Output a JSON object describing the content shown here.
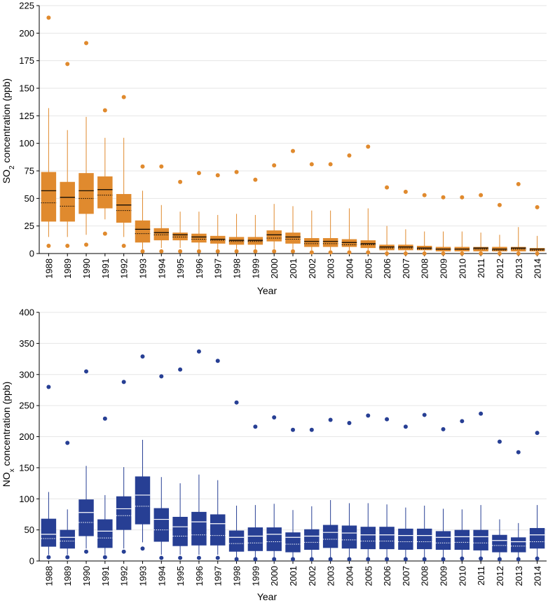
{
  "chart_data": [
    {
      "type": "box",
      "ylabel_parts": [
        "SO",
        "2",
        " concentration (ppb)"
      ],
      "xlabel": "Year",
      "ylim": [
        0,
        225
      ],
      "yticks": [
        0,
        25,
        50,
        75,
        100,
        125,
        150,
        175,
        200,
        225
      ],
      "color": "#e08a2e",
      "median_color": "#000000",
      "categories": [
        "1988",
        "1989",
        "1990",
        "1991",
        "1992",
        "1993",
        "1994",
        "1995",
        "1996",
        "1997",
        "1998",
        "1999",
        "2000",
        "2001",
        "2002",
        "2003",
        "2004",
        "2005",
        "2006",
        "2007",
        "2008",
        "2009",
        "2010",
        "2011",
        "2012",
        "2013",
        "2014"
      ],
      "boxes": [
        {
          "low_out": 7,
          "whisker_low": 15,
          "q1": 29,
          "median": 57,
          "mean": 46,
          "q3": 74,
          "whisker_high": 132,
          "high_out": 214
        },
        {
          "low_out": 7,
          "whisker_low": 15,
          "q1": 29,
          "median": 51,
          "mean": 43,
          "q3": 65,
          "whisker_high": 112,
          "high_out": 172
        },
        {
          "low_out": 8,
          "whisker_low": 17,
          "q1": 36,
          "median": 57,
          "mean": 50,
          "q3": 73,
          "whisker_high": 124,
          "high_out": 191
        },
        {
          "low_out": 18,
          "whisker_low": 31,
          "q1": 41,
          "median": 58,
          "mean": 53,
          "q3": 70,
          "whisker_high": 105,
          "high_out": 130
        },
        {
          "low_out": 7,
          "whisker_low": 15,
          "q1": 28,
          "median": 44,
          "mean": 39,
          "q3": 54,
          "whisker_high": 105,
          "high_out": 142
        },
        {
          "low_out": 2,
          "whisker_low": 4,
          "q1": 10,
          "median": 22,
          "mean": 18,
          "q3": 30,
          "whisker_high": 57,
          "high_out": 79
        },
        {
          "low_out": 2,
          "whisker_low": 5,
          "q1": 12,
          "median": 19,
          "mean": 17,
          "q3": 23,
          "whisker_high": 44,
          "high_out": 79
        },
        {
          "low_out": 2,
          "whisker_low": 5,
          "q1": 12,
          "median": 17,
          "mean": 15,
          "q3": 19,
          "whisker_high": 38,
          "high_out": 65
        },
        {
          "low_out": 2,
          "whisker_low": 4,
          "q1": 10,
          "median": 15,
          "mean": 13,
          "q3": 18,
          "whisker_high": 38,
          "high_out": 73
        },
        {
          "low_out": 2,
          "whisker_low": 4,
          "q1": 9,
          "median": 13,
          "mean": 12,
          "q3": 16,
          "whisker_high": 35,
          "high_out": 71
        },
        {
          "low_out": 2,
          "whisker_low": 4,
          "q1": 8,
          "median": 12,
          "mean": 11,
          "q3": 15,
          "whisker_high": 36,
          "high_out": 74
        },
        {
          "low_out": 2,
          "whisker_low": 4,
          "q1": 8,
          "median": 12,
          "mean": 11,
          "q3": 15,
          "whisker_high": 35,
          "high_out": 67
        },
        {
          "low_out": 2,
          "whisker_low": 4,
          "q1": 11,
          "median": 17,
          "mean": 14,
          "q3": 21,
          "whisker_high": 45,
          "high_out": 80
        },
        {
          "low_out": 2,
          "whisker_low": 4,
          "q1": 9,
          "median": 15,
          "mean": 13,
          "q3": 19,
          "whisker_high": 43,
          "high_out": 93
        },
        {
          "low_out": 1,
          "whisker_low": 3,
          "q1": 6,
          "median": 11,
          "mean": 9,
          "q3": 14,
          "whisker_high": 39,
          "high_out": 81
        },
        {
          "low_out": 1,
          "whisker_low": 3,
          "q1": 6,
          "median": 11,
          "mean": 9,
          "q3": 14,
          "whisker_high": 39,
          "high_out": 81
        },
        {
          "low_out": 1,
          "whisker_low": 3,
          "q1": 6,
          "median": 10,
          "mean": 8,
          "q3": 13,
          "whisker_high": 41,
          "high_out": 89
        },
        {
          "low_out": 1,
          "whisker_low": 2,
          "q1": 5,
          "median": 9,
          "mean": 8,
          "q3": 12,
          "whisker_high": 41,
          "high_out": 97
        },
        {
          "low_out": 0,
          "whisker_low": 1,
          "q1": 3,
          "median": 6,
          "mean": 5,
          "q3": 8,
          "whisker_high": 25,
          "high_out": 60
        },
        {
          "low_out": 0,
          "whisker_low": 1,
          "q1": 3,
          "median": 6,
          "mean": 5,
          "q3": 8,
          "whisker_high": 22,
          "high_out": 56
        },
        {
          "low_out": 0,
          "whisker_low": 1,
          "q1": 3,
          "median": 5,
          "mean": 4,
          "q3": 7,
          "whisker_high": 20,
          "high_out": 53
        },
        {
          "low_out": 0,
          "whisker_low": 1,
          "q1": 2,
          "median": 4,
          "mean": 4,
          "q3": 6,
          "whisker_high": 20,
          "high_out": 51
        },
        {
          "low_out": 0,
          "whisker_low": 1,
          "q1": 2,
          "median": 4,
          "mean": 4,
          "q3": 6,
          "whisker_high": 20,
          "high_out": 51
        },
        {
          "low_out": 0,
          "whisker_low": 1,
          "q1": 2,
          "median": 5,
          "mean": 4,
          "q3": 6,
          "whisker_high": 19,
          "high_out": 53
        },
        {
          "low_out": 0,
          "whisker_low": 1,
          "q1": 2,
          "median": 4,
          "mean": 3,
          "q3": 6,
          "whisker_high": 17,
          "high_out": 44
        },
        {
          "low_out": 0,
          "whisker_low": 1,
          "q1": 2,
          "median": 5,
          "mean": 4,
          "q3": 6,
          "whisker_high": 24,
          "high_out": 63
        },
        {
          "low_out": 0,
          "whisker_low": 1,
          "q1": 2,
          "median": 4,
          "mean": 3,
          "q3": 5,
          "whisker_high": 16,
          "high_out": 42
        }
      ]
    },
    {
      "type": "box",
      "ylabel_parts": [
        "NO",
        "x",
        " concentration (ppb)"
      ],
      "xlabel": "Year",
      "ylim": [
        0,
        400
      ],
      "yticks": [
        0,
        50,
        100,
        150,
        200,
        250,
        300,
        350,
        400
      ],
      "color": "#273f94",
      "median_color": "#ffffff",
      "categories": [
        "1988",
        "1989",
        "1990",
        "1991",
        "1992",
        "1993",
        "1994",
        "1995",
        "1996",
        "1997",
        "1998",
        "1999",
        "2000",
        "2001",
        "2002",
        "2003",
        "2004",
        "2005",
        "2006",
        "2007",
        "2008",
        "2009",
        "2010",
        "2011",
        "2012",
        "2013",
        "2014"
      ],
      "boxes": [
        {
          "low_out": 6,
          "whisker_low": 10,
          "q1": 23,
          "median": 43,
          "mean": 36,
          "q3": 68,
          "whisker_high": 111,
          "high_out": 280
        },
        {
          "low_out": 6,
          "whisker_low": 10,
          "q1": 20,
          "median": 38,
          "mean": 32,
          "q3": 50,
          "whisker_high": 83,
          "high_out": 190
        },
        {
          "low_out": 15,
          "whisker_low": 20,
          "q1": 40,
          "median": 78,
          "mean": 62,
          "q3": 99,
          "whisker_high": 153,
          "high_out": 305
        },
        {
          "low_out": 6,
          "whisker_low": 10,
          "q1": 21,
          "median": 48,
          "mean": 37,
          "q3": 67,
          "whisker_high": 106,
          "high_out": 229
        },
        {
          "low_out": 15,
          "whisker_low": 20,
          "q1": 50,
          "median": 84,
          "mean": 73,
          "q3": 104,
          "whisker_high": 151,
          "high_out": 288
        },
        {
          "low_out": 20,
          "whisker_low": 30,
          "q1": 59,
          "median": 106,
          "mean": 88,
          "q3": 136,
          "whisker_high": 195,
          "high_out": 329
        },
        {
          "low_out": 5,
          "whisker_low": 10,
          "q1": 31,
          "median": 67,
          "mean": 50,
          "q3": 85,
          "whisker_high": 135,
          "high_out": 297
        },
        {
          "low_out": 5,
          "whisker_low": 10,
          "q1": 24,
          "median": 55,
          "mean": 40,
          "q3": 71,
          "whisker_high": 125,
          "high_out": 308
        },
        {
          "low_out": 5,
          "whisker_low": 10,
          "q1": 25,
          "median": 63,
          "mean": 42,
          "q3": 79,
          "whisker_high": 139,
          "high_out": 337
        },
        {
          "low_out": 5,
          "whisker_low": 10,
          "q1": 25,
          "median": 60,
          "mean": 41,
          "q3": 75,
          "whisker_high": 130,
          "high_out": 322
        },
        {
          "low_out": 3,
          "whisker_low": 6,
          "q1": 15,
          "median": 38,
          "mean": 28,
          "q3": 49,
          "whisker_high": 89,
          "high_out": 255
        },
        {
          "low_out": 3,
          "whisker_low": 6,
          "q1": 16,
          "median": 40,
          "mean": 29,
          "q3": 54,
          "whisker_high": 90,
          "high_out": 216
        },
        {
          "low_out": 3,
          "whisker_low": 6,
          "q1": 16,
          "median": 43,
          "mean": 31,
          "q3": 54,
          "whisker_high": 92,
          "high_out": 231
        },
        {
          "low_out": 3,
          "whisker_low": 6,
          "q1": 14,
          "median": 38,
          "mean": 27,
          "q3": 46,
          "whisker_high": 82,
          "high_out": 211
        },
        {
          "low_out": 3,
          "whisker_low": 6,
          "q1": 18,
          "median": 40,
          "mean": 30,
          "q3": 51,
          "whisker_high": 88,
          "high_out": 211
        },
        {
          "low_out": 3,
          "whisker_low": 6,
          "q1": 21,
          "median": 46,
          "mean": 35,
          "q3": 58,
          "whisker_high": 98,
          "high_out": 227
        },
        {
          "low_out": 3,
          "whisker_low": 6,
          "q1": 20,
          "median": 45,
          "mean": 34,
          "q3": 57,
          "whisker_high": 93,
          "high_out": 222
        },
        {
          "low_out": 3,
          "whisker_low": 6,
          "q1": 19,
          "median": 42,
          "mean": 32,
          "q3": 55,
          "whisker_high": 93,
          "high_out": 234
        },
        {
          "low_out": 3,
          "whisker_low": 6,
          "q1": 19,
          "median": 42,
          "mean": 32,
          "q3": 55,
          "whisker_high": 91,
          "high_out": 228
        },
        {
          "low_out": 3,
          "whisker_low": 6,
          "q1": 18,
          "median": 41,
          "mean": 31,
          "q3": 52,
          "whisker_high": 86,
          "high_out": 216
        },
        {
          "low_out": 3,
          "whisker_low": 6,
          "q1": 19,
          "median": 41,
          "mean": 31,
          "q3": 52,
          "whisker_high": 89,
          "high_out": 235
        },
        {
          "low_out": 3,
          "whisker_low": 6,
          "q1": 18,
          "median": 38,
          "mean": 29,
          "q3": 48,
          "whisker_high": 84,
          "high_out": 212
        },
        {
          "low_out": 4,
          "whisker_low": 7,
          "q1": 18,
          "median": 39,
          "mean": 30,
          "q3": 50,
          "whisker_high": 83,
          "high_out": 225
        },
        {
          "low_out": 4,
          "whisker_low": 7,
          "q1": 17,
          "median": 39,
          "mean": 29,
          "q3": 50,
          "whisker_high": 90,
          "high_out": 237
        },
        {
          "low_out": 3,
          "whisker_low": 6,
          "q1": 14,
          "median": 33,
          "mean": 25,
          "q3": 42,
          "whisker_high": 67,
          "high_out": 192
        },
        {
          "low_out": 3,
          "whisker_low": 6,
          "q1": 14,
          "median": 31,
          "mean": 24,
          "q3": 38,
          "whisker_high": 61,
          "high_out": 175
        },
        {
          "low_out": 4,
          "whisker_low": 7,
          "q1": 20,
          "median": 42,
          "mean": 31,
          "q3": 53,
          "whisker_high": 90,
          "high_out": 206
        }
      ]
    }
  ]
}
